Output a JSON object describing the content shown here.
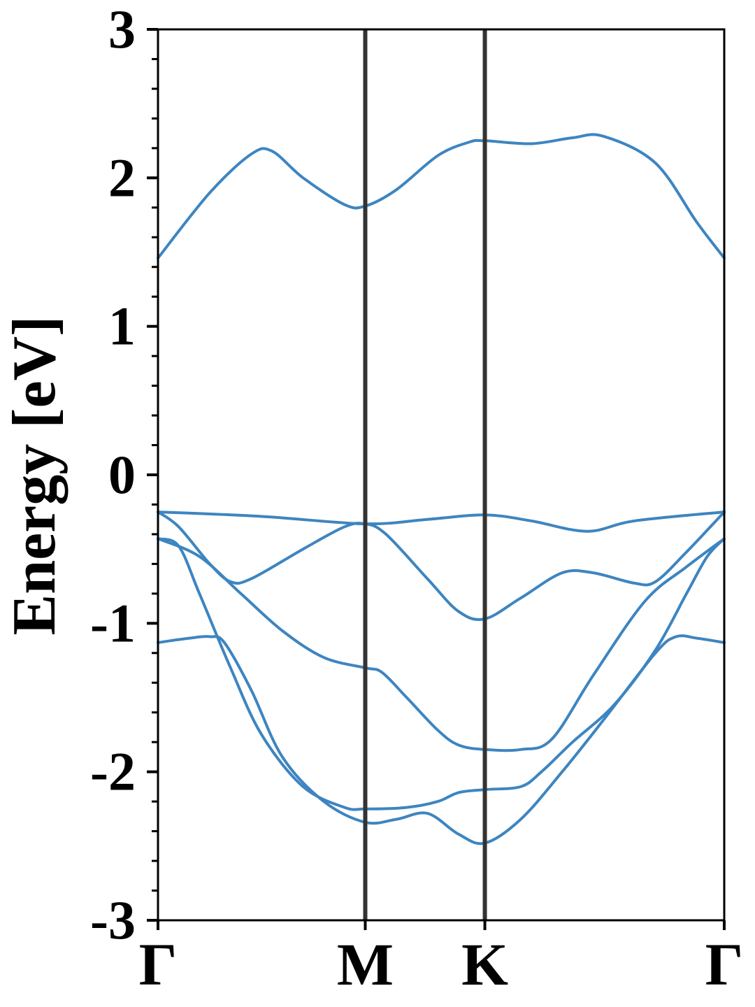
{
  "chart_data": {
    "type": "line",
    "title": "",
    "xlabel": "",
    "ylabel": "Energy [eV]",
    "ylim": [
      -3,
      3
    ],
    "yticks": [
      "-3",
      "-2",
      "-1",
      "0",
      "1",
      "2",
      "3"
    ],
    "x_points": [
      "Γ",
      "M",
      "K",
      "Γ"
    ],
    "x_point_positions": [
      0,
      1,
      1.577,
      2.732
    ],
    "grid": false,
    "legend": "none",
    "band_color": "#3d85c0",
    "divider_color": "#333333",
    "bands": [
      {
        "values": [
          [
            0,
            1.46
          ],
          [
            0.25,
            1.9
          ],
          [
            0.45,
            2.16
          ],
          [
            0.55,
            2.18
          ],
          [
            0.7,
            2.0
          ],
          [
            0.9,
            1.82
          ],
          [
            1.0,
            1.81
          ],
          [
            1.15,
            1.92
          ],
          [
            1.35,
            2.15
          ],
          [
            1.5,
            2.24
          ],
          [
            1.577,
            2.25
          ],
          [
            1.8,
            2.23
          ],
          [
            2.0,
            2.27
          ],
          [
            2.15,
            2.28
          ],
          [
            2.4,
            2.1
          ],
          [
            2.6,
            1.7
          ],
          [
            2.732,
            1.46
          ]
        ]
      },
      {
        "values": [
          [
            0,
            -0.25
          ],
          [
            0.5,
            -0.28
          ],
          [
            1.0,
            -0.33
          ],
          [
            1.3,
            -0.3
          ],
          [
            1.577,
            -0.27
          ],
          [
            1.8,
            -0.31
          ],
          [
            2.07,
            -0.38
          ],
          [
            2.3,
            -0.31
          ],
          [
            2.732,
            -0.25
          ]
        ]
      },
      {
        "values": [
          [
            0,
            -0.25
          ],
          [
            0.1,
            -0.35
          ],
          [
            0.25,
            -0.6
          ],
          [
            0.35,
            -0.72
          ],
          [
            0.45,
            -0.7
          ],
          [
            0.7,
            -0.5
          ],
          [
            0.9,
            -0.35
          ],
          [
            1.0,
            -0.33
          ],
          [
            1.1,
            -0.4
          ],
          [
            1.3,
            -0.7
          ],
          [
            1.45,
            -0.92
          ],
          [
            1.577,
            -0.97
          ],
          [
            1.75,
            -0.83
          ],
          [
            1.95,
            -0.66
          ],
          [
            2.1,
            -0.66
          ],
          [
            2.3,
            -0.73
          ],
          [
            2.4,
            -0.72
          ],
          [
            2.55,
            -0.52
          ],
          [
            2.732,
            -0.25
          ]
        ]
      },
      {
        "values": [
          [
            0,
            -0.43
          ],
          [
            0.2,
            -0.55
          ],
          [
            0.4,
            -0.8
          ],
          [
            0.6,
            -1.05
          ],
          [
            0.8,
            -1.23
          ],
          [
            1.0,
            -1.3
          ],
          [
            1.08,
            -1.33
          ],
          [
            1.2,
            -1.5
          ],
          [
            1.35,
            -1.72
          ],
          [
            1.45,
            -1.82
          ],
          [
            1.577,
            -1.85
          ],
          [
            1.75,
            -1.85
          ],
          [
            1.9,
            -1.78
          ],
          [
            2.1,
            -1.35
          ],
          [
            2.35,
            -0.85
          ],
          [
            2.55,
            -0.62
          ],
          [
            2.732,
            -0.43
          ]
        ]
      },
      {
        "values": [
          [
            0,
            -0.43
          ],
          [
            0.1,
            -0.48
          ],
          [
            0.2,
            -0.8
          ],
          [
            0.35,
            -1.3
          ],
          [
            0.5,
            -1.75
          ],
          [
            0.7,
            -2.1
          ],
          [
            0.9,
            -2.24
          ],
          [
            1.0,
            -2.25
          ],
          [
            1.2,
            -2.24
          ],
          [
            1.35,
            -2.2
          ],
          [
            1.45,
            -2.14
          ],
          [
            1.577,
            -2.12
          ],
          [
            1.75,
            -2.1
          ],
          [
            1.85,
            -2.0
          ],
          [
            2.0,
            -1.8
          ],
          [
            2.2,
            -1.55
          ],
          [
            2.4,
            -1.18
          ],
          [
            2.55,
            -0.8
          ],
          [
            2.65,
            -0.55
          ],
          [
            2.732,
            -0.43
          ]
        ]
      },
      {
        "values": [
          [
            0,
            -1.13
          ],
          [
            0.15,
            -1.1
          ],
          [
            0.25,
            -1.09
          ],
          [
            0.32,
            -1.13
          ],
          [
            0.45,
            -1.45
          ],
          [
            0.6,
            -1.9
          ],
          [
            0.8,
            -2.2
          ],
          [
            1.0,
            -2.34
          ],
          [
            1.15,
            -2.32
          ],
          [
            1.3,
            -2.28
          ],
          [
            1.45,
            -2.42
          ],
          [
            1.577,
            -2.48
          ],
          [
            1.75,
            -2.32
          ],
          [
            1.95,
            -2.0
          ],
          [
            2.15,
            -1.65
          ],
          [
            2.4,
            -1.2
          ],
          [
            2.5,
            -1.09
          ],
          [
            2.6,
            -1.1
          ],
          [
            2.732,
            -1.13
          ]
        ]
      }
    ]
  }
}
